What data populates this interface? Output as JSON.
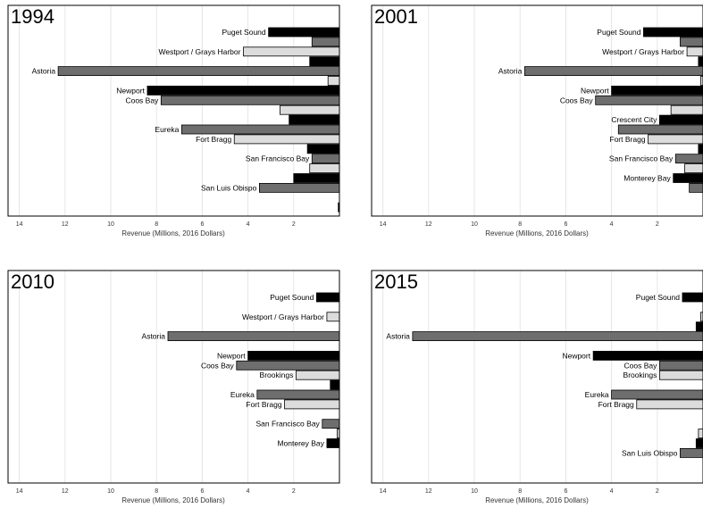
{
  "colors": {
    "black": "#000000",
    "dark_gray": "#6e6e6e",
    "light_gray": "#dcdcdc",
    "gridline": "#e6e6e6",
    "bar_outline": "#000000"
  },
  "chart_data": [
    {
      "type": "bar",
      "orientation": "horizontal",
      "title": "1994",
      "xlabel": "Revenue (Millions, 2016 Dollars)",
      "xlim": [
        0,
        14.5
      ],
      "x_reversed": true,
      "xticks": [
        "14",
        "12",
        "10",
        "8",
        "6",
        "4",
        "2"
      ],
      "port_labels": [
        {
          "text": "Puget Sound",
          "row": 0
        },
        {
          "text": "Westport / Grays Harbor",
          "row": 2
        },
        {
          "text": "Astoria",
          "row": 4
        },
        {
          "text": "Newport",
          "row": 6
        },
        {
          "text": "Coos Bay",
          "row": 7
        },
        {
          "text": "Eureka",
          "row": 10
        },
        {
          "text": "Fort Bragg",
          "row": 11
        },
        {
          "text": "San Francisco Bay",
          "row": 13
        },
        {
          "text": "San Luis Obispo",
          "row": 16
        }
      ],
      "bars": [
        {
          "row": 0,
          "value": 3.1,
          "color": "black"
        },
        {
          "row": 1,
          "value": 1.2,
          "color": "dark_gray"
        },
        {
          "row": 2,
          "value": 4.2,
          "color": "light_gray"
        },
        {
          "row": 3,
          "value": 1.3,
          "color": "black"
        },
        {
          "row": 4,
          "value": 12.3,
          "color": "dark_gray"
        },
        {
          "row": 5,
          "value": 0.5,
          "color": "light_gray"
        },
        {
          "row": 6,
          "value": 8.4,
          "color": "black"
        },
        {
          "row": 7,
          "value": 7.8,
          "color": "dark_gray"
        },
        {
          "row": 8,
          "value": 2.6,
          "color": "light_gray"
        },
        {
          "row": 9,
          "value": 2.2,
          "color": "black"
        },
        {
          "row": 10,
          "value": 6.9,
          "color": "dark_gray"
        },
        {
          "row": 11,
          "value": 4.6,
          "color": "light_gray"
        },
        {
          "row": 12,
          "value": 1.4,
          "color": "black"
        },
        {
          "row": 13,
          "value": 1.2,
          "color": "dark_gray"
        },
        {
          "row": 14,
          "value": 1.3,
          "color": "light_gray"
        },
        {
          "row": 15,
          "value": 2.0,
          "color": "black"
        },
        {
          "row": 16,
          "value": 3.5,
          "color": "dark_gray"
        },
        {
          "row": 17,
          "value": 0.0,
          "color": "light_gray"
        },
        {
          "row": 18,
          "value": 0.05,
          "color": "black"
        }
      ]
    },
    {
      "type": "bar",
      "orientation": "horizontal",
      "title": "2001",
      "xlabel": "Revenue (Millions, 2016 Dollars)",
      "xlim": [
        0,
        14.5
      ],
      "x_reversed": true,
      "xticks": [
        "14",
        "12",
        "10",
        "8",
        "6",
        "4",
        "2"
      ],
      "port_labels": [
        {
          "text": "Puget Sound",
          "row": 0
        },
        {
          "text": "Westport / Grays Harbor",
          "row": 2
        },
        {
          "text": "Astoria",
          "row": 4
        },
        {
          "text": "Newport",
          "row": 6
        },
        {
          "text": "Coos Bay",
          "row": 7
        },
        {
          "text": "Crescent City",
          "row": 9
        },
        {
          "text": "Fort Bragg",
          "row": 11
        },
        {
          "text": "San Francisco Bay",
          "row": 13
        },
        {
          "text": "Monterey Bay",
          "row": 15
        }
      ],
      "bars": [
        {
          "row": 0,
          "value": 2.6,
          "color": "black"
        },
        {
          "row": 1,
          "value": 1.0,
          "color": "dark_gray"
        },
        {
          "row": 2,
          "value": 0.7,
          "color": "light_gray"
        },
        {
          "row": 3,
          "value": 0.2,
          "color": "black"
        },
        {
          "row": 4,
          "value": 7.8,
          "color": "dark_gray"
        },
        {
          "row": 5,
          "value": 0.1,
          "color": "light_gray"
        },
        {
          "row": 6,
          "value": 4.0,
          "color": "black"
        },
        {
          "row": 7,
          "value": 4.7,
          "color": "dark_gray"
        },
        {
          "row": 8,
          "value": 1.4,
          "color": "light_gray"
        },
        {
          "row": 9,
          "value": 1.9,
          "color": "black"
        },
        {
          "row": 10,
          "value": 3.7,
          "color": "dark_gray"
        },
        {
          "row": 11,
          "value": 2.4,
          "color": "light_gray"
        },
        {
          "row": 12,
          "value": 0.2,
          "color": "black"
        },
        {
          "row": 13,
          "value": 1.2,
          "color": "dark_gray"
        },
        {
          "row": 14,
          "value": 0.8,
          "color": "light_gray"
        },
        {
          "row": 15,
          "value": 1.3,
          "color": "black"
        },
        {
          "row": 16,
          "value": 0.6,
          "color": "dark_gray"
        }
      ]
    },
    {
      "type": "bar",
      "orientation": "horizontal",
      "title": "2010",
      "xlabel": "Revenue (Millions, 2016 Dollars)",
      "xlim": [
        0,
        14.5
      ],
      "x_reversed": true,
      "xticks": [
        "14",
        "12",
        "10",
        "8",
        "6",
        "4",
        "2"
      ],
      "port_labels": [
        {
          "text": "Puget Sound",
          "row": 0
        },
        {
          "text": "Westport / Grays Harbor",
          "row": 2
        },
        {
          "text": "Astoria",
          "row": 4
        },
        {
          "text": "Newport",
          "row": 6
        },
        {
          "text": "Coos Bay",
          "row": 7
        },
        {
          "text": "Brookings",
          "row": 8
        },
        {
          "text": "Eureka",
          "row": 10
        },
        {
          "text": "Fort Bragg",
          "row": 11
        },
        {
          "text": "San Francisco Bay",
          "row": 13
        },
        {
          "text": "Monterey Bay",
          "row": 15
        }
      ],
      "bars": [
        {
          "row": 0,
          "value": 1.0,
          "color": "black"
        },
        {
          "row": 1,
          "value": 0.0,
          "color": "dark_gray"
        },
        {
          "row": 2,
          "value": 0.55,
          "color": "light_gray"
        },
        {
          "row": 4,
          "value": 7.5,
          "color": "dark_gray"
        },
        {
          "row": 6,
          "value": 4.0,
          "color": "black"
        },
        {
          "row": 7,
          "value": 4.5,
          "color": "dark_gray"
        },
        {
          "row": 8,
          "value": 1.9,
          "color": "light_gray"
        },
        {
          "row": 9,
          "value": 0.4,
          "color": "black"
        },
        {
          "row": 10,
          "value": 3.6,
          "color": "dark_gray"
        },
        {
          "row": 11,
          "value": 2.4,
          "color": "light_gray"
        },
        {
          "row": 12,
          "value": 0.0,
          "color": "black"
        },
        {
          "row": 13,
          "value": 0.75,
          "color": "dark_gray"
        },
        {
          "row": 14,
          "value": 0.1,
          "color": "light_gray"
        },
        {
          "row": 15,
          "value": 0.55,
          "color": "black"
        }
      ]
    },
    {
      "type": "bar",
      "orientation": "horizontal",
      "title": "2015",
      "xlabel": "Revenue (Millions, 2016 Dollars)",
      "xlim": [
        0,
        14.5
      ],
      "x_reversed": true,
      "xticks": [
        "14",
        "12",
        "10",
        "8",
        "6",
        "4",
        "2"
      ],
      "port_labels": [
        {
          "text": "Puget Sound",
          "row": 0
        },
        {
          "text": "Astoria",
          "row": 4
        },
        {
          "text": "Newport",
          "row": 6
        },
        {
          "text": "Coos Bay",
          "row": 7
        },
        {
          "text": "Brookings",
          "row": 8
        },
        {
          "text": "Eureka",
          "row": 10
        },
        {
          "text": "Fort Bragg",
          "row": 11
        },
        {
          "text": "San Luis Obispo",
          "row": 16
        }
      ],
      "bars": [
        {
          "row": 0,
          "value": 0.9,
          "color": "black"
        },
        {
          "row": 2,
          "value": 0.1,
          "color": "light_gray"
        },
        {
          "row": 3,
          "value": 0.3,
          "color": "black"
        },
        {
          "row": 4,
          "value": 12.7,
          "color": "dark_gray"
        },
        {
          "row": 6,
          "value": 4.8,
          "color": "black"
        },
        {
          "row": 7,
          "value": 1.9,
          "color": "dark_gray"
        },
        {
          "row": 8,
          "value": 1.9,
          "color": "light_gray"
        },
        {
          "row": 10,
          "value": 4.0,
          "color": "dark_gray"
        },
        {
          "row": 11,
          "value": 2.9,
          "color": "light_gray"
        },
        {
          "row": 14,
          "value": 0.2,
          "color": "light_gray"
        },
        {
          "row": 15,
          "value": 0.3,
          "color": "black"
        },
        {
          "row": 16,
          "value": 1.0,
          "color": "dark_gray"
        }
      ]
    }
  ]
}
